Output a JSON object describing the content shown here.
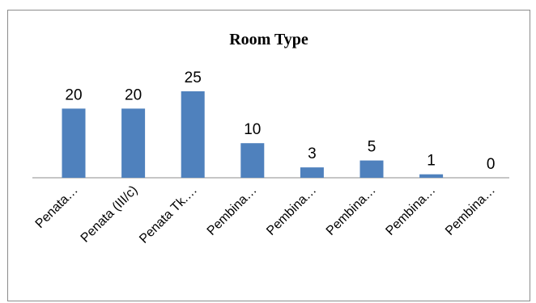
{
  "chart_data": {
    "type": "bar",
    "title": "Room Type",
    "xlabel": "",
    "ylabel": "",
    "categories": [
      "Penata…",
      "Penata (III/c)",
      "Penata Tk.…",
      "Pembina…",
      "Pembina…",
      "Pembina…",
      "Pembina…",
      "Pembina…"
    ],
    "values": [
      20,
      20,
      25,
      10,
      3,
      5,
      1,
      0
    ],
    "data_labels": [
      "20",
      "20",
      "25",
      "10",
      "3",
      "5",
      "1",
      "0"
    ],
    "ylim": [
      0,
      25
    ],
    "grid": false,
    "legend": "none",
    "bar_color": "#4f81bd",
    "axis_color": "#8c8c8c"
  }
}
